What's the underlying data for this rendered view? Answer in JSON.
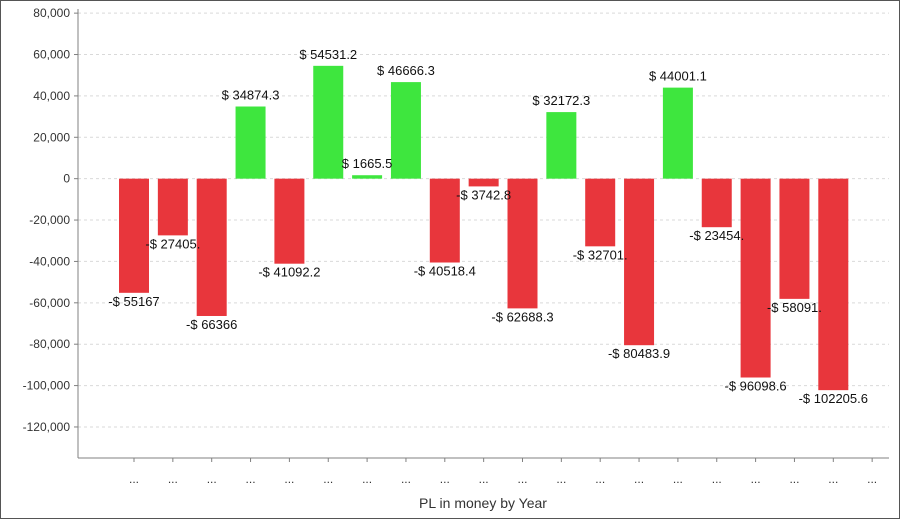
{
  "chart_data": {
    "type": "bar",
    "xlabel": "PL in money by Year",
    "ylabel": "",
    "ylim": [
      -135000,
      82000
    ],
    "yticks": [
      80000,
      60000,
      40000,
      20000,
      0,
      -20000,
      -40000,
      -60000,
      -80000,
      -100000,
      -120000
    ],
    "ytick_labels": [
      "80,000",
      "60,000",
      "40,000",
      "20,000",
      "0",
      "-20,000",
      "-40,000",
      "-60,000",
      "-80,000",
      "-100,000",
      "-120,000"
    ],
    "grid": true,
    "categories": [
      "...",
      "...",
      "...",
      "...",
      "...",
      "...",
      "...",
      "...",
      "...",
      "...",
      "...",
      "...",
      "...",
      "...",
      "...",
      "...",
      "...",
      "...",
      "...",
      "..."
    ],
    "values": [
      -55167,
      -27405,
      -66366,
      34874.3,
      -41092.2,
      54531.2,
      1665.5,
      46666.3,
      -40518.4,
      -3742.8,
      -62688.3,
      32172.3,
      -32701,
      -80483.9,
      44001.1,
      -23454,
      -96098.6,
      -58091,
      -102205.6,
      0
    ],
    "data_labels": [
      "-$ 55167",
      "-$ 27405.",
      "-$ 66366",
      "$ 34874.3",
      "-$ 41092.2",
      "$ 54531.2",
      "$ 1665.5",
      "$ 46666.3",
      "-$ 40518.4",
      "-$ 3742.8",
      "-$ 62688.3",
      "$ 32172.3",
      "-$ 32701.",
      "-$ 80483.9",
      "$ 44001.1",
      "-$ 23454.",
      "-$ 96098.6",
      "-$ 58091.",
      "-$ 102205.6",
      ""
    ],
    "colors": {
      "positive": "#3ee63e",
      "negative": "#e8363c",
      "grid": "#d9d9d9",
      "axis": "#808080"
    }
  }
}
